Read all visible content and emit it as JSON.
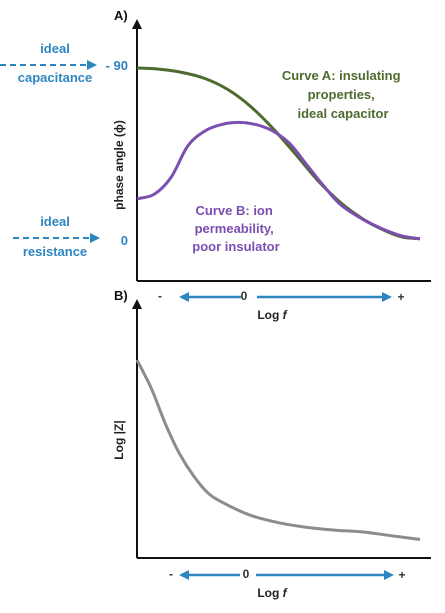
{
  "chart_data": [
    {
      "type": "line",
      "panel": "A)",
      "ylabel": "phase angle (ϕ)",
      "xlabel": "Log f",
      "y_ticks": [
        "- 90",
        "0"
      ],
      "x_direction_ticks": [
        "-",
        "0",
        "+"
      ],
      "annotations": [
        {
          "lines": [
            "ideal",
            "capacitance"
          ],
          "points_to": "- 90"
        },
        {
          "lines": [
            "ideal",
            "resistance"
          ],
          "points_to": "0"
        }
      ],
      "series": [
        {
          "name": "Curve A",
          "label_lines": [
            "Curve A: insulating",
            "properties,",
            "ideal capacitor"
          ],
          "color": "#4e6b2e",
          "x": [
            0,
            0.08,
            0.16,
            0.24,
            0.32,
            0.4,
            0.48,
            0.56,
            0.64,
            0.72,
            0.8,
            0.88,
            0.94,
            1.0
          ],
          "y": [
            -90,
            -89.4,
            -87.7,
            -84.6,
            -79.0,
            -70.4,
            -59.0,
            -45.7,
            -32.0,
            -20.7,
            -12.2,
            -6.1,
            -3.0,
            -2.2
          ]
        },
        {
          "name": "Curve B",
          "label_lines": [
            "Curve B: ion",
            "permeability,",
            "poor insulator"
          ],
          "color": "#7b4fb0",
          "x": [
            0,
            0.06,
            0.12,
            0.18,
            0.24,
            0.3,
            0.36,
            0.42,
            0.48,
            0.54,
            0.6,
            0.66,
            0.72,
            0.8,
            0.88,
            0.94,
            1.0
          ],
          "y": [
            -22.8,
            -25.0,
            -33.7,
            -50.0,
            -57.6,
            -61.0,
            -62.0,
            -60.9,
            -57.6,
            -51.1,
            -40.2,
            -29.3,
            -19.6,
            -12.0,
            -6.5,
            -3.5,
            -2.2
          ]
        }
      ]
    },
    {
      "type": "line",
      "panel": "B)",
      "ylabel": "Log |Z|",
      "xlabel": "Log f",
      "x_direction_ticks": [
        "-",
        "0",
        "+"
      ],
      "series": [
        {
          "color": "#8c8c8c",
          "x": [
            0,
            0.05,
            0.1,
            0.15,
            0.2,
            0.25,
            0.3,
            0.4,
            0.5,
            0.6,
            0.7,
            0.8,
            0.9,
            1.0
          ],
          "y": [
            1.0,
            0.85,
            0.66,
            0.5,
            0.38,
            0.29,
            0.24,
            0.17,
            0.13,
            0.105,
            0.09,
            0.08,
            0.06,
            0.04
          ]
        }
      ]
    }
  ]
}
